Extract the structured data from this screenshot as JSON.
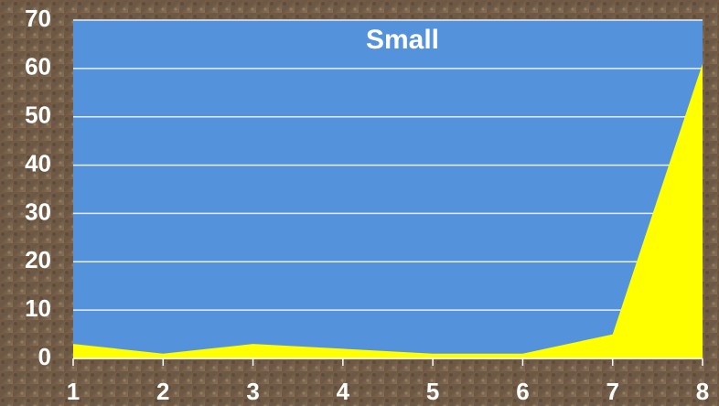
{
  "chart_data": {
    "type": "area",
    "title": "Small",
    "x": [
      1,
      2,
      3,
      4,
      5,
      6,
      7,
      8
    ],
    "series": [
      {
        "color": "#ffff00",
        "values": [
          3,
          1,
          3,
          2,
          1,
          1,
          5,
          61
        ]
      }
    ],
    "xlim": [
      1,
      8
    ],
    "xticks": [
      1,
      2,
      3,
      4,
      5,
      6,
      7,
      8
    ],
    "ylim": [
      0,
      70
    ],
    "yticks": [
      0,
      10,
      20,
      30,
      40,
      50,
      60,
      70
    ],
    "grid": true,
    "plot_background": "#5592dc"
  }
}
